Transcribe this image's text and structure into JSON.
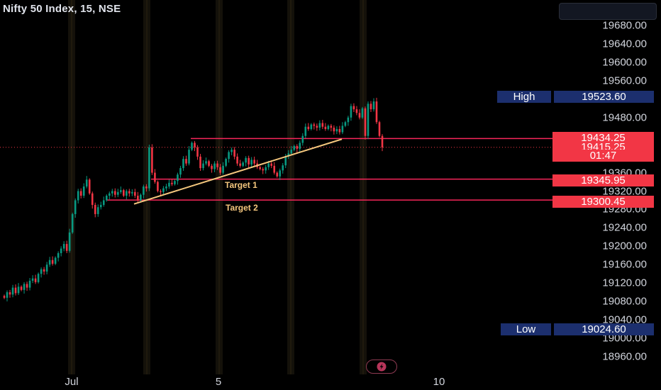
{
  "header": {
    "title": "Nifty 50 Index, 15, NSE"
  },
  "price_axis": {
    "ticks": [
      "19680.00",
      "19640.00",
      "19600.00",
      "19560.00",
      "19480.00",
      "19360.00",
      "19320.00",
      "19280.00",
      "19240.00",
      "19200.00",
      "19160.00",
      "19120.00",
      "19080.00",
      "19040.00",
      "19000.00",
      "18960.00"
    ]
  },
  "time_axis": {
    "ticks": [
      "Jul",
      "5",
      "10"
    ]
  },
  "markers": {
    "high_label": "High",
    "high_value": "19523.60",
    "low_label": "Low",
    "low_value": "19024.60",
    "resistance_value": "19434.25",
    "last_price": "19415.25",
    "countdown": "01:47",
    "target1_value": "19345.95",
    "target2_value": "19300.45"
  },
  "annotations": {
    "target1": "Target 1",
    "target2": "Target 2"
  },
  "colors": {
    "up": "#089981",
    "down": "#f23645",
    "level": "#f7265a",
    "trend": "#f5c77e",
    "tag_blue": "#1c2f6e"
  },
  "chart_data": {
    "type": "candlestick",
    "symbol": "Nifty 50 Index",
    "interval": "15",
    "exchange": "NSE",
    "ylim": [
      18940,
      19720
    ],
    "levels": [
      {
        "price": 19434.25
      },
      {
        "price": 19345.95,
        "label": "Target 1"
      },
      {
        "price": 19300.45,
        "label": "Target 2"
      }
    ],
    "trendline": [
      [
        19292,
        19433
      ]
    ],
    "path": [
      19088,
      19100,
      19095,
      19110,
      19098,
      19112,
      19105,
      19118,
      19110,
      19125,
      19130,
      19122,
      19140,
      19150,
      19145,
      19160,
      19170,
      19162,
      19175,
      19185,
      19195,
      19205,
      19190,
      19230,
      19270,
      19300,
      19320,
      19310,
      19330,
      19345,
      19315,
      19290,
      19270,
      19285,
      19290,
      19300,
      19310,
      19315,
      19320,
      19312,
      19318,
      19322,
      19310,
      19320,
      19315,
      19318,
      19310,
      19300,
      19312,
      19330,
      19326,
      19415,
      19360,
      19340,
      19320,
      19318,
      19326,
      19330,
      19338,
      19335,
      19342,
      19356,
      19370,
      19390,
      19380,
      19410,
      19425,
      19415,
      19395,
      19370,
      19380,
      19385,
      19375,
      19368,
      19380,
      19372,
      19360,
      19375,
      19390,
      19405,
      19410,
      19395,
      19380,
      19375,
      19382,
      19392,
      19378,
      19388,
      19380,
      19372,
      19368,
      19365,
      19372,
      19380,
      19375,
      19360,
      19352,
      19365,
      19376,
      19395,
      19402,
      19410,
      19418,
      19412,
      19425,
      19440,
      19460,
      19455,
      19465,
      19462,
      19458,
      19468,
      19460,
      19455,
      19462,
      19458,
      19450,
      19455,
      19448,
      19462,
      19470,
      19480,
      19505,
      19498,
      19490,
      19480,
      19500,
      19440,
      19510,
      19498,
      19515,
      19470,
      19440,
      19415
    ]
  }
}
